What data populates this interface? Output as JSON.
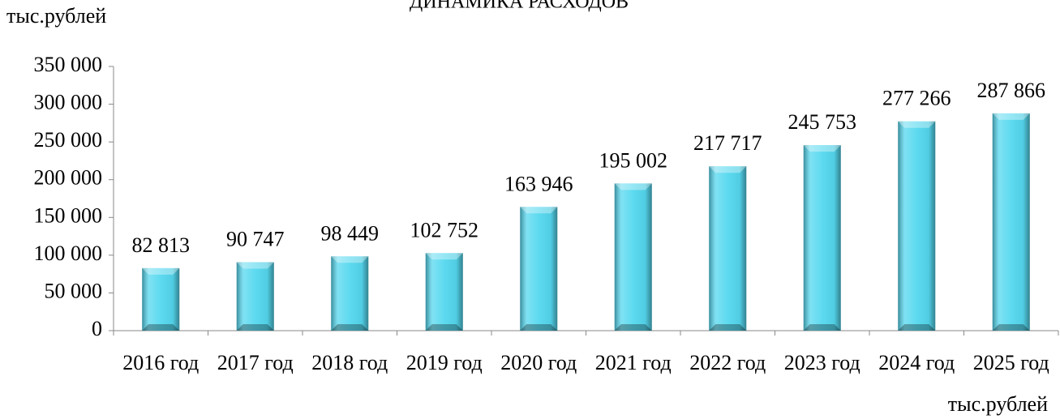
{
  "chart_data": {
    "type": "bar",
    "title": "ДИНАМИКА РАСХОДОВ",
    "y_label": "тыс.рублей",
    "x_label": "тыс.рублей",
    "categories": [
      "2016 год",
      "2017 год",
      "2018 год",
      "2019 год",
      "2020 год",
      "2021 год",
      "2022 год",
      "2023 год",
      "2024 год",
      "2025 год"
    ],
    "values": [
      82813,
      90747,
      98449,
      102752,
      163946,
      195002,
      217717,
      245753,
      277266,
      287866
    ],
    "value_labels": [
      "82 813",
      "90 747",
      "98 449",
      "102 752",
      "163 946",
      "195 002",
      "217 717",
      "245 753",
      "277 266",
      "287 866"
    ],
    "color": "#55d8ef",
    "ylim": [
      0,
      350000
    ],
    "yticks": [
      0,
      {
        "value": 50000,
        "label": "50 000"
      },
      {
        "value": 100000,
        "label": "100 000"
      },
      {
        "value": 150000,
        "label": "150 000"
      },
      {
        "value": 200000,
        "label": "200 000"
      },
      {
        "value": 250000,
        "label": "250 000"
      },
      {
        "value": 300000,
        "label": "300 000"
      },
      {
        "value": 350000,
        "label": "350 000"
      }
    ]
  }
}
